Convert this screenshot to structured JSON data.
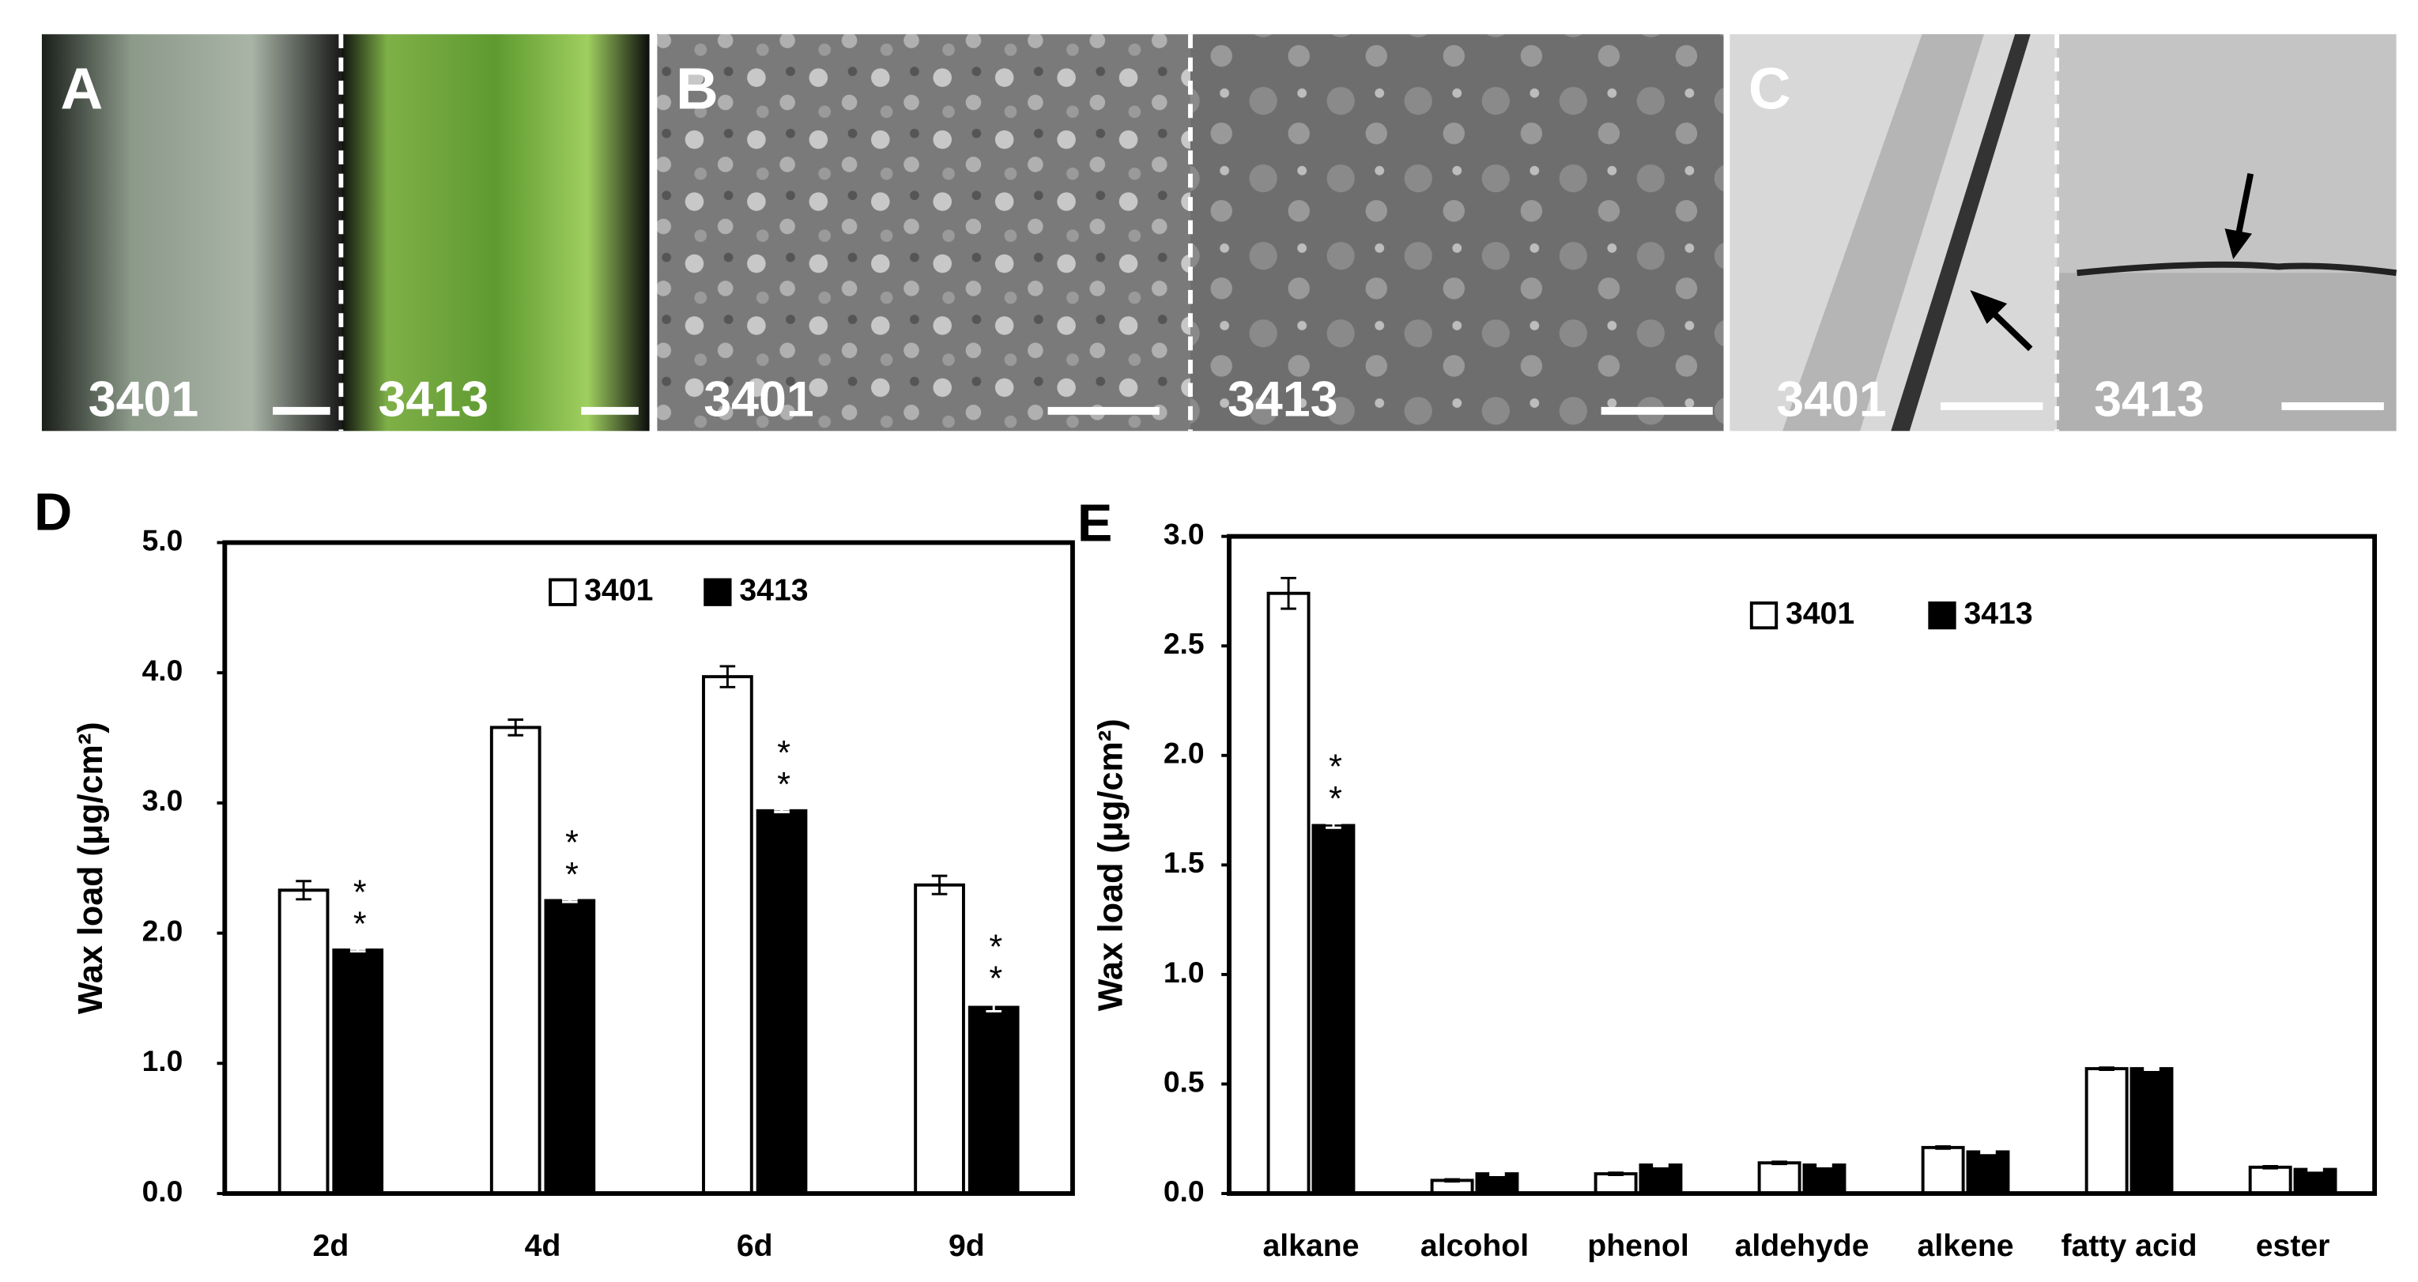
{
  "photos": [
    {
      "panel": "A",
      "labels": [
        "3401",
        "3413"
      ]
    },
    {
      "panel": "B",
      "labels": [
        "3401",
        "3413"
      ]
    },
    {
      "panel": "C",
      "labels": [
        "3401",
        "3413"
      ]
    }
  ],
  "chart_data": [
    {
      "type": "bar",
      "panel": "D",
      "y_label": "Wax load (μg/cm²)",
      "categories": [
        "2d",
        "4d",
        "6d",
        "9d"
      ],
      "series": [
        {
          "name": "3401",
          "color": "#ffffff",
          "values": [
            2.33,
            3.58,
            3.97,
            2.37
          ],
          "errors": [
            0.07,
            0.06,
            0.08,
            0.07
          ]
        },
        {
          "name": "3413",
          "color": "#000000",
          "values": [
            1.87,
            2.25,
            2.94,
            1.43
          ],
          "errors": [
            0.01,
            0.01,
            0.01,
            0.03
          ],
          "markers": [
            "**",
            "**",
            "**",
            "**"
          ]
        }
      ],
      "ylim": [
        0,
        5
      ],
      "yticks": [
        {
          "value": 0,
          "label": "0.0"
        },
        {
          "value": 1,
          "label": "1.0"
        },
        {
          "value": 2,
          "label": "2.0"
        },
        {
          "value": 3,
          "label": "3.0"
        },
        {
          "value": 4,
          "label": "4.0"
        },
        {
          "value": 5,
          "label": "5.0"
        }
      ],
      "legend": "top"
    },
    {
      "type": "bar",
      "panel": "E",
      "y_label": "Wax load (μg/cm²)",
      "categories": [
        "alkane",
        "alcohol",
        "phenol",
        "aldehyde",
        "alkene",
        "fatty acid",
        "ester"
      ],
      "series": [
        {
          "name": "3401",
          "color": "#ffffff",
          "values": [
            2.74,
            0.06,
            0.09,
            0.14,
            0.21,
            0.57,
            0.12
          ],
          "errors": [
            0.07,
            0.005,
            0.005,
            0.005,
            0.005,
            0.005,
            0.005
          ]
        },
        {
          "name": "3413",
          "color": "#000000",
          "values": [
            1.68,
            0.09,
            0.13,
            0.13,
            0.19,
            0.57,
            0.11
          ],
          "errors": [
            0.01,
            0.005,
            0.005,
            0.005,
            0.005,
            0.005,
            0.005
          ],
          "markers": [
            "**",
            null,
            null,
            null,
            null,
            null,
            null
          ]
        }
      ],
      "ylim": [
        0,
        3
      ],
      "yticks": [
        {
          "value": 0,
          "label": "0.0"
        },
        {
          "value": 0.5,
          "label": "0.5"
        },
        {
          "value": 1,
          "label": "1.0"
        },
        {
          "value": 1.5,
          "label": "1.5"
        },
        {
          "value": 2,
          "label": "2.0"
        },
        {
          "value": 2.5,
          "label": "2.5"
        },
        {
          "value": 3,
          "label": "3.0"
        }
      ],
      "legend": "top-right"
    }
  ]
}
